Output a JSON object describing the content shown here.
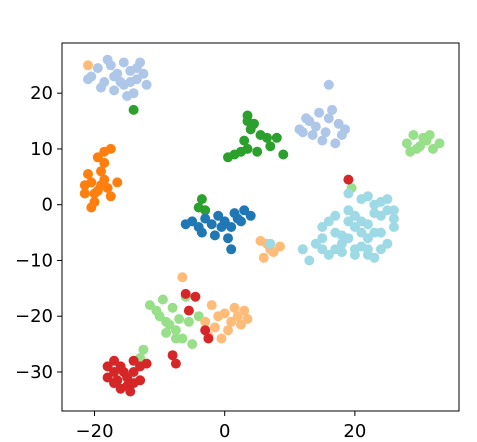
{
  "chart_data": {
    "type": "scatter",
    "title": "",
    "xlabel": "",
    "ylabel": "",
    "xlim": [
      -25,
      36
    ],
    "ylim": [
      -37,
      29
    ],
    "xticks": [
      -20,
      0,
      20
    ],
    "yticks": [
      -30,
      -20,
      -10,
      0,
      10,
      20
    ],
    "xtick_labels": [
      "−20",
      "0",
      "20"
    ],
    "ytick_labels": [
      "−30",
      "−20",
      "−10",
      "0",
      "10",
      "20"
    ],
    "grid": false,
    "legend": "none",
    "series": [
      {
        "color": "#aec7e8",
        "points": [
          [
            -20.5,
            23
          ],
          [
            -19.5,
            24.5
          ],
          [
            -18.5,
            22
          ],
          [
            -17.5,
            25
          ],
          [
            -16.5,
            23.5
          ],
          [
            -15.5,
            21.5
          ],
          [
            -14.5,
            24
          ],
          [
            -13.5,
            22.5
          ],
          [
            -12.5,
            23.5
          ],
          [
            -17,
            20.5
          ],
          [
            -15,
            19.5
          ],
          [
            -18,
            26
          ],
          [
            -13,
            25.5
          ],
          [
            -14,
            20
          ],
          [
            -16,
            22
          ],
          [
            -19,
            21
          ],
          [
            -12,
            21.5
          ],
          [
            -15.5,
            25.5
          ],
          [
            -21,
            22.5
          ],
          [
            -17,
            23
          ],
          [
            -14.5,
            22
          ],
          [
            -13.5,
            24.5
          ],
          [
            13,
            15
          ],
          [
            14.5,
            16.5
          ],
          [
            16,
            15.5
          ],
          [
            17.5,
            14.5
          ],
          [
            11.5,
            13.5
          ],
          [
            13.5,
            12.5
          ],
          [
            15.5,
            13
          ],
          [
            17,
            11
          ],
          [
            18,
            12.5
          ],
          [
            15,
            11.5
          ],
          [
            16,
            21.5
          ],
          [
            12.5,
            15.5
          ],
          [
            14,
            14
          ],
          [
            16.5,
            17
          ],
          [
            18.5,
            13.5
          ],
          [
            12,
            13
          ]
        ]
      },
      {
        "color": "#ff7f0e",
        "points": [
          [
            -21.5,
            2
          ],
          [
            -20.5,
            4
          ],
          [
            -19.5,
            2.5
          ],
          [
            -18.5,
            4.5
          ],
          [
            -20,
            0.5
          ],
          [
            -21,
            5.5
          ],
          [
            -19,
            6
          ],
          [
            -18,
            3
          ],
          [
            -17.5,
            1.5
          ],
          [
            -20.5,
            -0.5
          ],
          [
            -19.5,
            8.5
          ],
          [
            -18.5,
            9.5
          ],
          [
            -17.5,
            10
          ],
          [
            -21.5,
            3.5
          ],
          [
            -16.5,
            4
          ],
          [
            -19,
            3.5
          ],
          [
            -20,
            2
          ],
          [
            -18.5,
            7.5
          ]
        ]
      },
      {
        "color": "#2ca02c",
        "points": [
          [
            -14,
            17
          ],
          [
            3.5,
            15
          ],
          [
            5.5,
            12.5
          ],
          [
            4,
            13.5
          ],
          [
            3,
            11.5
          ],
          [
            6.5,
            12
          ],
          [
            8,
            12
          ],
          [
            1.5,
            9
          ],
          [
            0.5,
            8.5
          ],
          [
            2.5,
            9.5
          ],
          [
            3.5,
            10
          ],
          [
            5,
            9.5
          ],
          [
            7,
            10.5
          ],
          [
            4.5,
            14.5
          ],
          [
            3.5,
            16
          ],
          [
            9,
            9
          ],
          [
            -3.5,
            1
          ],
          [
            -4,
            -0.5
          ],
          [
            -3,
            -1
          ]
        ]
      },
      {
        "color": "#98df8a",
        "points": [
          [
            28,
            11
          ],
          [
            29,
            12.5
          ],
          [
            30,
            10.5
          ],
          [
            31,
            11.5
          ],
          [
            32,
            10
          ],
          [
            29.5,
            10
          ],
          [
            30.5,
            12
          ],
          [
            33,
            11
          ],
          [
            28.5,
            9.5
          ],
          [
            31.5,
            12.5
          ],
          [
            19.5,
            3
          ],
          [
            -10,
            -20
          ],
          [
            -8.5,
            -21.5
          ],
          [
            -9,
            -23
          ],
          [
            -7.5,
            -22.5
          ],
          [
            -6.5,
            -24
          ],
          [
            -5.5,
            -21
          ],
          [
            -10.5,
            -19
          ],
          [
            -8,
            -18.5
          ],
          [
            -11.5,
            -18
          ],
          [
            -9,
            -21
          ],
          [
            -7,
            -20.5
          ],
          [
            -12.5,
            -26
          ],
          [
            -13,
            -27.5
          ],
          [
            -5,
            -25
          ],
          [
            -4,
            -20
          ],
          [
            -6,
            -16.5
          ],
          [
            -9.5,
            -17
          ],
          [
            -7.5,
            -24
          ]
        ]
      },
      {
        "color": "#1f77b4",
        "points": [
          [
            -5,
            -3
          ],
          [
            -4,
            -4
          ],
          [
            -3,
            -2.5
          ],
          [
            -2,
            -3.5
          ],
          [
            -1,
            -2
          ],
          [
            0,
            -3
          ],
          [
            1,
            -4
          ],
          [
            2,
            -2.5
          ],
          [
            -3.5,
            -5
          ],
          [
            -1.5,
            -5.5
          ],
          [
            0.5,
            -6
          ],
          [
            -0.5,
            -4
          ],
          [
            1.5,
            -1.5
          ],
          [
            3,
            -1
          ],
          [
            2.5,
            -3
          ],
          [
            4,
            -2
          ],
          [
            -6,
            -3.5
          ],
          [
            1,
            -8
          ]
        ]
      },
      {
        "color": "#ffbb78",
        "points": [
          [
            -21,
            25
          ],
          [
            -2,
            -18
          ],
          [
            -1,
            -20
          ],
          [
            0,
            -19.5
          ],
          [
            1,
            -21
          ],
          [
            2,
            -20
          ],
          [
            3,
            -19
          ],
          [
            -1.5,
            -22
          ],
          [
            0.5,
            -22.5
          ],
          [
            2.5,
            -21.5
          ],
          [
            -2.5,
            -23.5
          ],
          [
            -0.5,
            -24
          ],
          [
            3.5,
            -20.5
          ],
          [
            -3,
            -21
          ],
          [
            1.5,
            -18.5
          ],
          [
            6.5,
            -7
          ],
          [
            7.5,
            -8.5
          ],
          [
            8.5,
            -7.5
          ],
          [
            6,
            -9.5
          ],
          [
            5.5,
            -6.5
          ],
          [
            7,
            -8
          ],
          [
            12,
            -8
          ],
          [
            -6.5,
            -13
          ]
        ]
      },
      {
        "color": "#9edae5",
        "points": [
          [
            15,
            -4
          ],
          [
            17,
            -5
          ],
          [
            19,
            -6
          ],
          [
            21,
            -3
          ],
          [
            23,
            -5
          ],
          [
            25,
            -7
          ],
          [
            20,
            -8
          ],
          [
            22,
            -9
          ],
          [
            18,
            -7
          ],
          [
            16,
            -9
          ],
          [
            24,
            -2
          ],
          [
            26,
            -4
          ],
          [
            19,
            -1
          ],
          [
            21,
            1
          ],
          [
            23,
            0
          ],
          [
            25,
            -1
          ],
          [
            17,
            -2
          ],
          [
            20,
            -4
          ],
          [
            22,
            -6
          ],
          [
            24,
            -8
          ],
          [
            14,
            -7
          ],
          [
            13,
            -10
          ],
          [
            12,
            -8
          ],
          [
            15,
            -8
          ],
          [
            18,
            -8.5
          ],
          [
            20,
            -2
          ],
          [
            22,
            -3.5
          ],
          [
            24,
            -5
          ],
          [
            26,
            -1
          ],
          [
            19,
            -3
          ],
          [
            21,
            -7.5
          ],
          [
            23,
            -1.5
          ],
          [
            25,
            1
          ],
          [
            16,
            -3
          ],
          [
            18,
            -5.5
          ],
          [
            20,
            -9
          ],
          [
            22,
            1.5
          ],
          [
            24,
            0.5
          ],
          [
            21,
            -5
          ],
          [
            23,
            -9.5
          ],
          [
            17,
            -8
          ],
          [
            19,
            2
          ],
          [
            26,
            -2.5
          ],
          [
            15,
            -6
          ],
          [
            22,
            -8
          ],
          [
            7,
            -7
          ]
        ]
      },
      {
        "color": "#d62728",
        "points": [
          [
            19,
            4.5
          ],
          [
            -16,
            -29
          ],
          [
            -15,
            -31
          ],
          [
            -14,
            -30
          ],
          [
            -17,
            -32
          ],
          [
            -16,
            -33
          ],
          [
            -15,
            -32.5
          ],
          [
            -14,
            -32
          ],
          [
            -13,
            -31.5
          ],
          [
            -17,
            -30
          ],
          [
            -18,
            -29
          ],
          [
            -16.5,
            -31.5
          ],
          [
            -14.5,
            -33.5
          ],
          [
            -13,
            -29
          ],
          [
            -15.5,
            -30
          ],
          [
            -18,
            -31
          ],
          [
            -17,
            -28
          ],
          [
            -12,
            -28.5
          ],
          [
            -14,
            -28
          ],
          [
            -8,
            -27
          ],
          [
            -7.5,
            -28.5
          ],
          [
            -6,
            -16
          ],
          [
            -4.5,
            -16.5
          ],
          [
            -5.5,
            -19
          ],
          [
            -3,
            -22.5
          ],
          [
            -2.5,
            -24
          ]
        ]
      }
    ]
  }
}
